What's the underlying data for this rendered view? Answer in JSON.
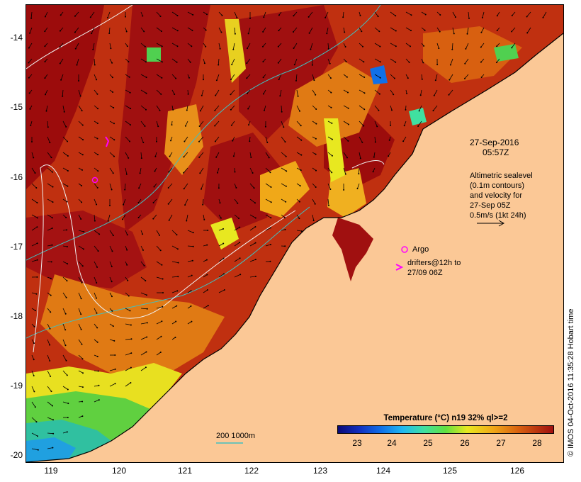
{
  "map": {
    "y_axis_labels": [
      "-14",
      "-15",
      "-16",
      "-17",
      "-18",
      "-19",
      "-20"
    ],
    "x_axis_labels": [
      "119",
      "120",
      "121",
      "122",
      "123",
      "124",
      "125",
      "126"
    ],
    "timestamp_line1": "27-Sep-2016",
    "timestamp_line2": "05:57Z",
    "info_lines": [
      "Altimetric sealevel",
      "(0.1m contours)",
      "and velocity for",
      "27-Sep 05Z",
      "0.5m/s (1kt 24h)"
    ],
    "argo_label": "Argo",
    "drifter_line1": "drifters@12h to",
    "drifter_line2": "27/09 06Z",
    "isobath_label": "200  1000m",
    "credit": "© IMOS 04-Oct-2016 11:35:28 Hobart time"
  },
  "legend": {
    "title": "Temperature (°C) n19 32% ql>=2",
    "ticks": [
      "23",
      "24",
      "25",
      "26",
      "27",
      "28"
    ]
  },
  "colors": {
    "land": "#fbc896",
    "hot": "#a01010",
    "warm": "#d86010",
    "mild": "#f0a818",
    "cool": "#60e040",
    "cold": "#20b8f0",
    "argo": "#ff00ff",
    "isobath": "#40c0c0"
  }
}
